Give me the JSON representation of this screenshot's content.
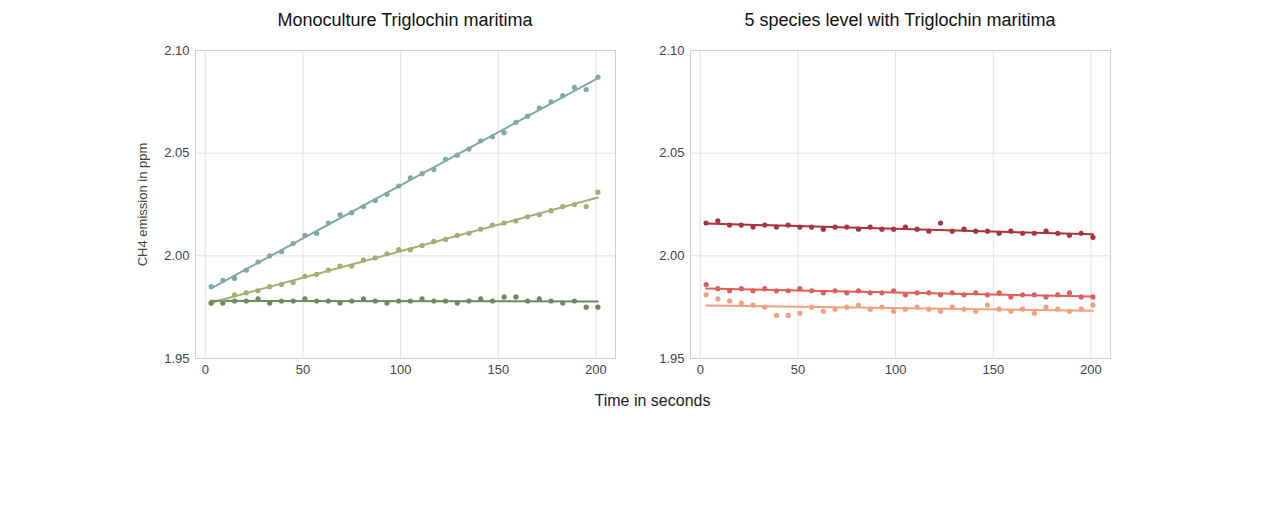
{
  "chart_data": [
    {
      "type": "scatter",
      "title": "Monoculture Triglochin maritima",
      "ylabel": "CH4 emission in ppm",
      "xlabel": "Time in seconds",
      "marker": "circle",
      "line_style": "solid",
      "grid": true,
      "xlim": [
        -5,
        210
      ],
      "xticks": [
        0,
        50,
        100,
        150,
        200
      ],
      "ylim": [
        1.95,
        2.1
      ],
      "yticks": [
        1.95,
        {
          "value": 2.0,
          "label": "2.00"
        },
        2.05,
        {
          "value": 2.1,
          "label": "2.10"
        }
      ],
      "x": [
        3,
        9,
        15,
        21,
        27,
        33,
        39,
        45,
        51,
        57,
        63,
        69,
        75,
        81,
        87,
        93,
        99,
        105,
        111,
        117,
        123,
        129,
        135,
        141,
        147,
        153,
        159,
        165,
        171,
        177,
        183,
        189,
        195,
        201
      ],
      "series": [
        {
          "color": "#7fa9a5",
          "values": [
            1.985,
            1.988,
            1.989,
            1.993,
            1.997,
            2.0,
            2.002,
            2.006,
            2.01,
            2.011,
            2.016,
            2.02,
            2.021,
            2.024,
            2.027,
            2.03,
            2.034,
            2.038,
            2.04,
            2.042,
            2.047,
            2.049,
            2.052,
            2.056,
            2.058,
            2.06,
            2.065,
            2.068,
            2.072,
            2.075,
            2.078,
            2.082,
            2.081,
            2.087
          ]
        },
        {
          "color": "#a4ad72",
          "values": [
            1.977,
            1.978,
            1.981,
            1.982,
            1.983,
            1.985,
            1.986,
            1.987,
            1.99,
            1.991,
            1.993,
            1.995,
            1.995,
            1.998,
            1.999,
            2.001,
            2.003,
            2.003,
            2.005,
            2.007,
            2.008,
            2.01,
            2.011,
            2.013,
            2.015,
            2.016,
            2.017,
            2.019,
            2.02,
            2.022,
            2.024,
            2.025,
            2.024,
            2.031
          ]
        },
        {
          "color": "#6d8a5e",
          "values": [
            1.977,
            1.977,
            1.978,
            1.978,
            1.979,
            1.977,
            1.978,
            1.978,
            1.979,
            1.978,
            1.978,
            1.977,
            1.978,
            1.979,
            1.978,
            1.977,
            1.978,
            1.978,
            1.979,
            1.978,
            1.978,
            1.977,
            1.978,
            1.979,
            1.978,
            1.98,
            1.98,
            1.978,
            1.979,
            1.978,
            1.977,
            1.978,
            1.975,
            1.975
          ]
        }
      ]
    },
    {
      "type": "scatter",
      "title": "5 species level with Triglochin maritima",
      "marker": "circle",
      "line_style": "solid",
      "grid": true,
      "xlim": [
        -5,
        210
      ],
      "xticks": [
        0,
        50,
        100,
        150,
        200
      ],
      "ylim": [
        1.95,
        2.1
      ],
      "yticks": [
        1.95,
        {
          "value": 2.0,
          "label": "2.00"
        },
        2.05,
        {
          "value": 2.1,
          "label": "2.10"
        }
      ],
      "x": [
        3,
        9,
        15,
        21,
        27,
        33,
        39,
        45,
        51,
        57,
        63,
        69,
        75,
        81,
        87,
        93,
        99,
        105,
        111,
        117,
        123,
        129,
        135,
        141,
        147,
        153,
        159,
        165,
        171,
        177,
        183,
        189,
        195,
        201
      ],
      "series": [
        {
          "color": "#a8343f",
          "values": [
            2.016,
            2.017,
            2.015,
            2.015,
            2.014,
            2.015,
            2.014,
            2.015,
            2.014,
            2.014,
            2.013,
            2.014,
            2.014,
            2.013,
            2.014,
            2.013,
            2.013,
            2.014,
            2.013,
            2.012,
            2.016,
            2.012,
            2.013,
            2.012,
            2.012,
            2.011,
            2.012,
            2.011,
            2.011,
            2.012,
            2.011,
            2.01,
            2.011,
            2.009
          ]
        },
        {
          "color": "#dd5f57",
          "values": [
            1.986,
            1.984,
            1.983,
            1.984,
            1.983,
            1.984,
            1.983,
            1.983,
            1.984,
            1.983,
            1.982,
            1.983,
            1.982,
            1.983,
            1.982,
            1.982,
            1.983,
            1.981,
            1.982,
            1.982,
            1.981,
            1.982,
            1.981,
            1.982,
            1.981,
            1.982,
            1.98,
            1.981,
            1.981,
            1.98,
            1.981,
            1.982,
            1.98,
            1.98
          ]
        },
        {
          "color": "#f2a080",
          "values": [
            1.981,
            1.979,
            1.978,
            1.977,
            1.976,
            1.975,
            1.971,
            1.971,
            1.972,
            1.975,
            1.973,
            1.974,
            1.975,
            1.976,
            1.974,
            1.975,
            1.973,
            1.974,
            1.975,
            1.974,
            1.973,
            1.975,
            1.974,
            1.973,
            1.976,
            1.974,
            1.973,
            1.974,
            1.972,
            1.975,
            1.974,
            1.973,
            1.974,
            1.976
          ]
        }
      ]
    }
  ]
}
